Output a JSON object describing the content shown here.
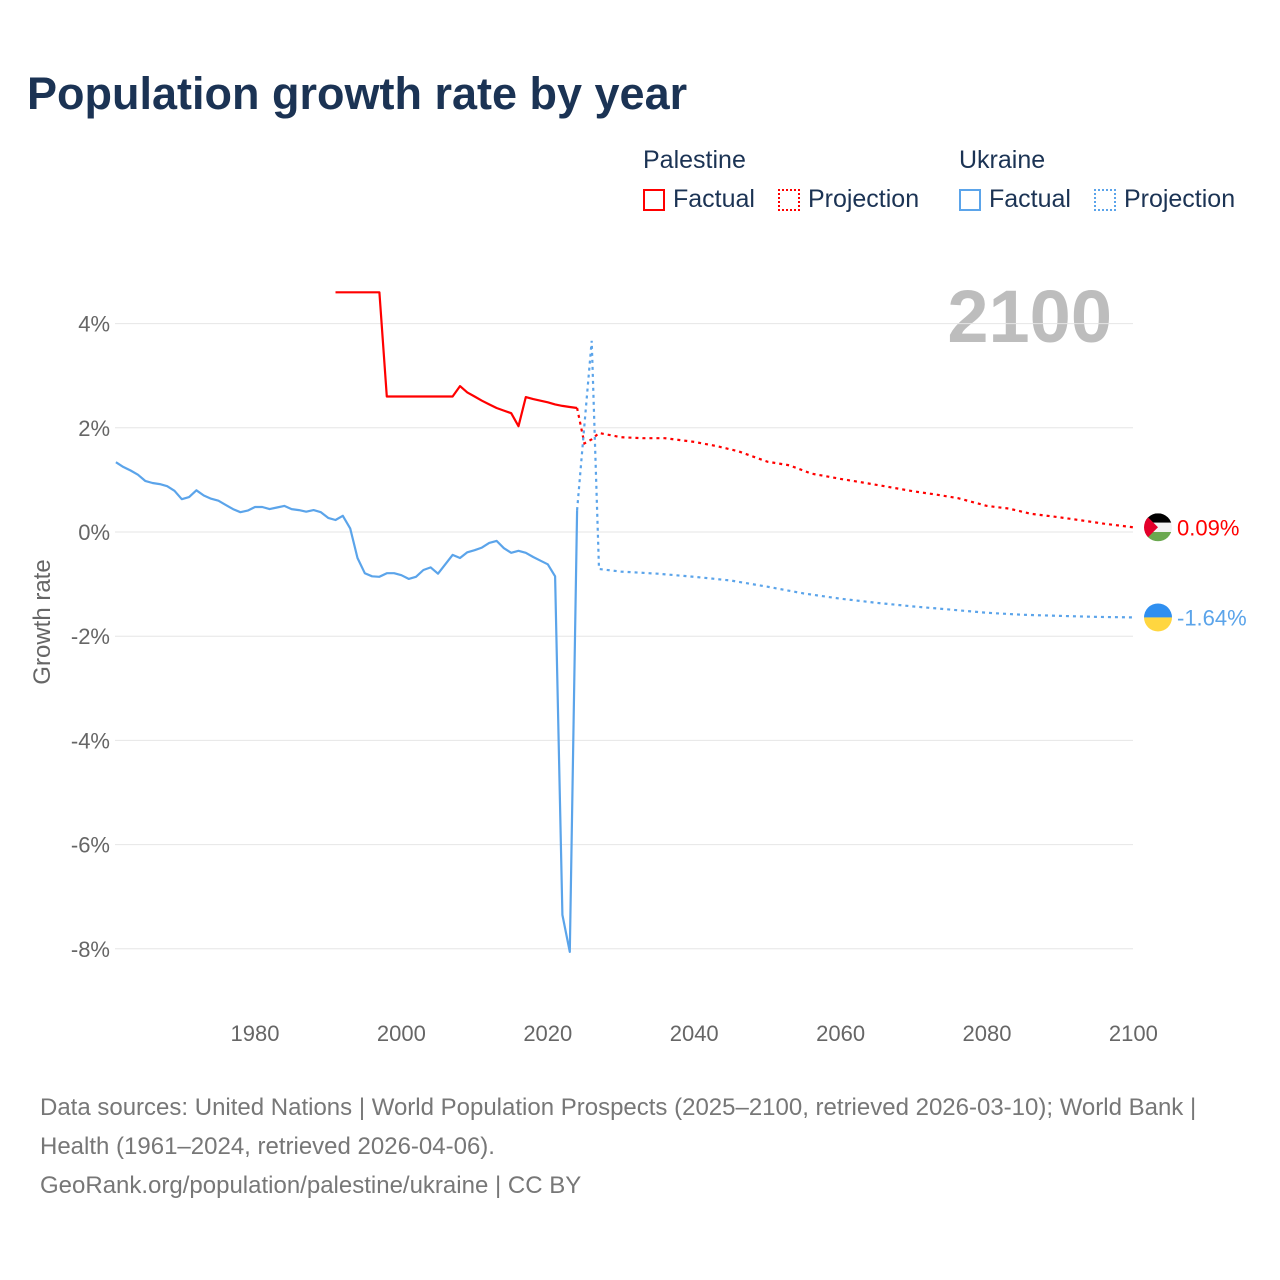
{
  "chart_data": {
    "type": "line",
    "title": "Population growth rate by year",
    "ylabel": "Growth rate",
    "xlabel": "",
    "xlim": [
      1961,
      2100
    ],
    "ylim": [
      -9,
      5
    ],
    "x_ticks": [
      1980,
      2000,
      2020,
      2040,
      2060,
      2080,
      2100
    ],
    "x_tick_labels": [
      "1980",
      "2000",
      "2020",
      "2040",
      "2060",
      "2080",
      "2100"
    ],
    "y_ticks": [
      4,
      2,
      0,
      -2,
      -4,
      -6,
      -8
    ],
    "y_tick_labels": [
      "4%",
      "2%",
      "0%",
      "-2%",
      "-4%",
      "-6%",
      "-8%"
    ],
    "grid": true,
    "current_year_label": "2100",
    "legend_placement": "top-right",
    "series": [
      {
        "name": "Palestine",
        "color": "#ff0000",
        "factual_label": "Factual",
        "projection_label": "Projection",
        "end_label": "0.09%",
        "factual": {
          "x": [
            1991,
            1997,
            1998,
            2007,
            2008,
            2009,
            2010,
            2011,
            2012,
            2013,
            2014,
            2015,
            2016,
            2017,
            2018,
            2019,
            2020,
            2021,
            2022,
            2023,
            2024
          ],
          "y": [
            4.6,
            4.6,
            2.6,
            2.6,
            2.8,
            2.68,
            2.6,
            2.52,
            2.45,
            2.38,
            2.33,
            2.28,
            2.03,
            2.59,
            2.55,
            2.52,
            2.49,
            2.45,
            2.42,
            2.4,
            2.38
          ]
        },
        "projection": {
          "x": [
            2024,
            2025,
            2026,
            2027,
            2030,
            2033,
            2036,
            2040,
            2043,
            2046,
            2050,
            2053,
            2056,
            2060,
            2063,
            2066,
            2070,
            2073,
            2076,
            2080,
            2083,
            2086,
            2090,
            2093,
            2096,
            2100
          ],
          "y": [
            2.38,
            1.7,
            1.78,
            1.9,
            1.82,
            1.8,
            1.8,
            1.73,
            1.65,
            1.55,
            1.35,
            1.28,
            1.12,
            1.02,
            0.95,
            0.88,
            0.78,
            0.72,
            0.65,
            0.5,
            0.45,
            0.35,
            0.28,
            0.22,
            0.16,
            0.09
          ]
        }
      },
      {
        "name": "Ukraine",
        "color": "#5ba4ea",
        "factual_label": "Factual",
        "projection_label": "Projection",
        "end_label": "-1.64%",
        "factual": {
          "x": [
            1961,
            1962,
            1963,
            1964,
            1965,
            1966,
            1967,
            1968,
            1969,
            1970,
            1971,
            1972,
            1973,
            1974,
            1975,
            1976,
            1977,
            1978,
            1979,
            1980,
            1981,
            1982,
            1983,
            1984,
            1985,
            1986,
            1987,
            1988,
            1989,
            1990,
            1991,
            1992,
            1993,
            1994,
            1995,
            1996,
            1997,
            1998,
            1999,
            2000,
            2001,
            2002,
            2003,
            2004,
            2005,
            2006,
            2007,
            2008,
            2009,
            2010,
            2011,
            2012,
            2013,
            2014,
            2015,
            2016,
            2017,
            2018,
            2019,
            2020,
            2021,
            2022,
            2023,
            2024
          ],
          "y": [
            1.34,
            1.25,
            1.18,
            1.1,
            0.98,
            0.94,
            0.92,
            0.88,
            0.79,
            0.63,
            0.67,
            0.8,
            0.7,
            0.64,
            0.6,
            0.52,
            0.44,
            0.38,
            0.41,
            0.48,
            0.48,
            0.44,
            0.47,
            0.5,
            0.44,
            0.42,
            0.39,
            0.42,
            0.38,
            0.27,
            0.23,
            0.31,
            0.07,
            -0.5,
            -0.79,
            -0.85,
            -0.86,
            -0.79,
            -0.79,
            -0.83,
            -0.9,
            -0.86,
            -0.73,
            -0.68,
            -0.8,
            -0.62,
            -0.44,
            -0.5,
            -0.39,
            -0.35,
            -0.3,
            -0.21,
            -0.17,
            -0.31,
            -0.4,
            -0.36,
            -0.4,
            -0.48,
            -0.55,
            -0.62,
            -0.85,
            -7.35,
            -8.06,
            0.42
          ]
        },
        "projection": {
          "x": [
            2024,
            2025,
            2026,
            2027,
            2030,
            2035,
            2040,
            2045,
            2050,
            2055,
            2060,
            2065,
            2070,
            2075,
            2080,
            2085,
            2090,
            2095,
            2100
          ],
          "y": [
            0.42,
            2.05,
            3.67,
            -0.71,
            -0.76,
            -0.8,
            -0.86,
            -0.93,
            -1.05,
            -1.18,
            -1.28,
            -1.36,
            -1.43,
            -1.49,
            -1.55,
            -1.59,
            -1.61,
            -1.63,
            -1.64
          ]
        }
      }
    ]
  },
  "footer": {
    "sources": "Data sources: United Nations | World Population Prospects (2025–2100, retrieved 2026-03-10); World Bank | Health (1961–2024, retrieved 2026-04-06).",
    "credit": "GeoRank.org/population/palestine/ukraine | CC BY"
  }
}
